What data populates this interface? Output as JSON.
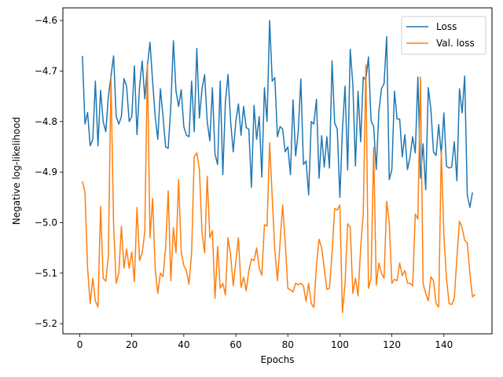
{
  "chart_data": {
    "type": "line",
    "title": "",
    "xlabel": "Epochs",
    "ylabel": "Negative log-likelihood",
    "xlim": [
      -6.5,
      158.5
    ],
    "ylim": [
      -5.22,
      -4.575
    ],
    "xticks": [
      0,
      20,
      40,
      60,
      80,
      100,
      120,
      140
    ],
    "yticks": [
      -5.2,
      -5.1,
      -5.0,
      -4.9,
      -4.8,
      -4.7,
      -4.6
    ],
    "ytick_labels": [
      "−5.2",
      "−5.1",
      "−5.0",
      "−4.9",
      "−4.8",
      "−4.7",
      "−4.6"
    ],
    "grid": false,
    "legend_position": "top-right",
    "series": [
      {
        "name": "Loss",
        "color": "#1f77b4",
        "x_start": 1,
        "values": [
          -4.67,
          -4.805,
          -4.782,
          -4.848,
          -4.835,
          -4.72,
          -4.848,
          -4.738,
          -4.8,
          -4.82,
          -4.75,
          -4.71,
          -4.67,
          -4.79,
          -4.805,
          -4.79,
          -4.715,
          -4.73,
          -4.8,
          -4.79,
          -4.69,
          -4.826,
          -4.73,
          -4.68,
          -4.755,
          -4.69,
          -4.643,
          -4.72,
          -4.79,
          -4.835,
          -4.735,
          -4.79,
          -4.85,
          -4.853,
          -4.77,
          -4.64,
          -4.74,
          -4.77,
          -4.737,
          -4.81,
          -4.827,
          -4.83,
          -4.72,
          -4.82,
          -4.655,
          -4.793,
          -4.735,
          -4.707,
          -4.8,
          -4.838,
          -4.733,
          -4.865,
          -4.885,
          -4.72,
          -4.905,
          -4.76,
          -4.707,
          -4.8,
          -4.86,
          -4.8,
          -4.765,
          -4.827,
          -4.77,
          -4.812,
          -4.815,
          -4.93,
          -4.768,
          -4.835,
          -4.79,
          -4.91,
          -4.733,
          -4.8,
          -4.6,
          -4.72,
          -4.713,
          -4.83,
          -4.81,
          -4.815,
          -4.86,
          -4.85,
          -4.905,
          -4.757,
          -4.868,
          -4.82,
          -4.716,
          -4.885,
          -4.878,
          -4.945,
          -4.8,
          -4.805,
          -4.756,
          -4.912,
          -4.828,
          -4.89,
          -4.83,
          -4.892,
          -4.68,
          -4.803,
          -4.815,
          -4.95,
          -4.815,
          -4.73,
          -4.896,
          -4.657,
          -4.727,
          -4.888,
          -4.74,
          -4.84,
          -4.712,
          -4.718,
          -4.672,
          -4.798,
          -4.81,
          -4.895,
          -4.78,
          -4.735,
          -4.725,
          -4.632,
          -4.915,
          -4.895,
          -4.74,
          -4.795,
          -4.795,
          -4.87,
          -4.826,
          -4.895,
          -4.87,
          -4.83,
          -4.862,
          -4.712,
          -4.912,
          -4.844,
          -4.935,
          -4.733,
          -4.775,
          -4.86,
          -4.867,
          -4.806,
          -4.866,
          -4.783,
          -4.888,
          -4.892,
          -4.89,
          -4.84,
          -4.917,
          -4.735,
          -4.783,
          -4.71,
          -4.945,
          -4.97,
          -4.94
        ]
      },
      {
        "name": "Val. loss",
        "color": "#ff7f0e",
        "x_start": 1,
        "values": [
          -4.918,
          -4.94,
          -5.09,
          -5.16,
          -5.11,
          -5.155,
          -5.167,
          -4.968,
          -5.11,
          -5.116,
          -5.065,
          -4.712,
          -5.005,
          -5.12,
          -5.1,
          -5.007,
          -5.09,
          -5.052,
          -5.09,
          -5.058,
          -5.117,
          -4.97,
          -5.075,
          -5.06,
          -5.018,
          -4.685,
          -5.03,
          -4.952,
          -5.092,
          -5.14,
          -5.1,
          -5.107,
          -5.05,
          -4.937,
          -5.115,
          -5.01,
          -5.06,
          -4.915,
          -5.057,
          -5.085,
          -5.095,
          -5.122,
          -5.06,
          -4.87,
          -4.862,
          -4.895,
          -5.02,
          -5.06,
          -4.908,
          -5.03,
          -5.016,
          -5.15,
          -5.047,
          -5.13,
          -5.12,
          -5.143,
          -5.03,
          -5.064,
          -5.125,
          -5.077,
          -5.03,
          -5.128,
          -5.108,
          -5.135,
          -5.095,
          -5.072,
          -5.075,
          -5.05,
          -5.09,
          -5.104,
          -5.004,
          -5.007,
          -4.842,
          -4.95,
          -5.055,
          -5.115,
          -5.04,
          -4.965,
          -5.04,
          -5.13,
          -5.133,
          -5.137,
          -5.12,
          -5.123,
          -5.12,
          -5.125,
          -5.156,
          -5.12,
          -5.16,
          -5.168,
          -5.085,
          -5.033,
          -5.05,
          -5.09,
          -5.132,
          -5.13,
          -5.06,
          -4.972,
          -4.975,
          -4.965,
          -5.178,
          -5.12,
          -5.002,
          -5.01,
          -5.14,
          -5.11,
          -5.145,
          -5.05,
          -4.983,
          -4.688,
          -5.13,
          -5.11,
          -4.851,
          -5.124,
          -5.08,
          -5.1,
          -5.11,
          -4.958,
          -5.0,
          -5.12,
          -5.112,
          -5.115,
          -5.08,
          -5.105,
          -5.095,
          -5.12,
          -5.12,
          -5.125,
          -4.983,
          -4.993,
          -4.712,
          -5.12,
          -5.14,
          -5.155,
          -5.107,
          -5.115,
          -5.16,
          -5.167,
          -4.857,
          -5.025,
          -5.11,
          -5.16,
          -5.162,
          -5.15,
          -5.07,
          -4.997,
          -5.01,
          -5.035,
          -5.04,
          -5.1,
          -5.147,
          -5.142
        ]
      }
    ]
  }
}
